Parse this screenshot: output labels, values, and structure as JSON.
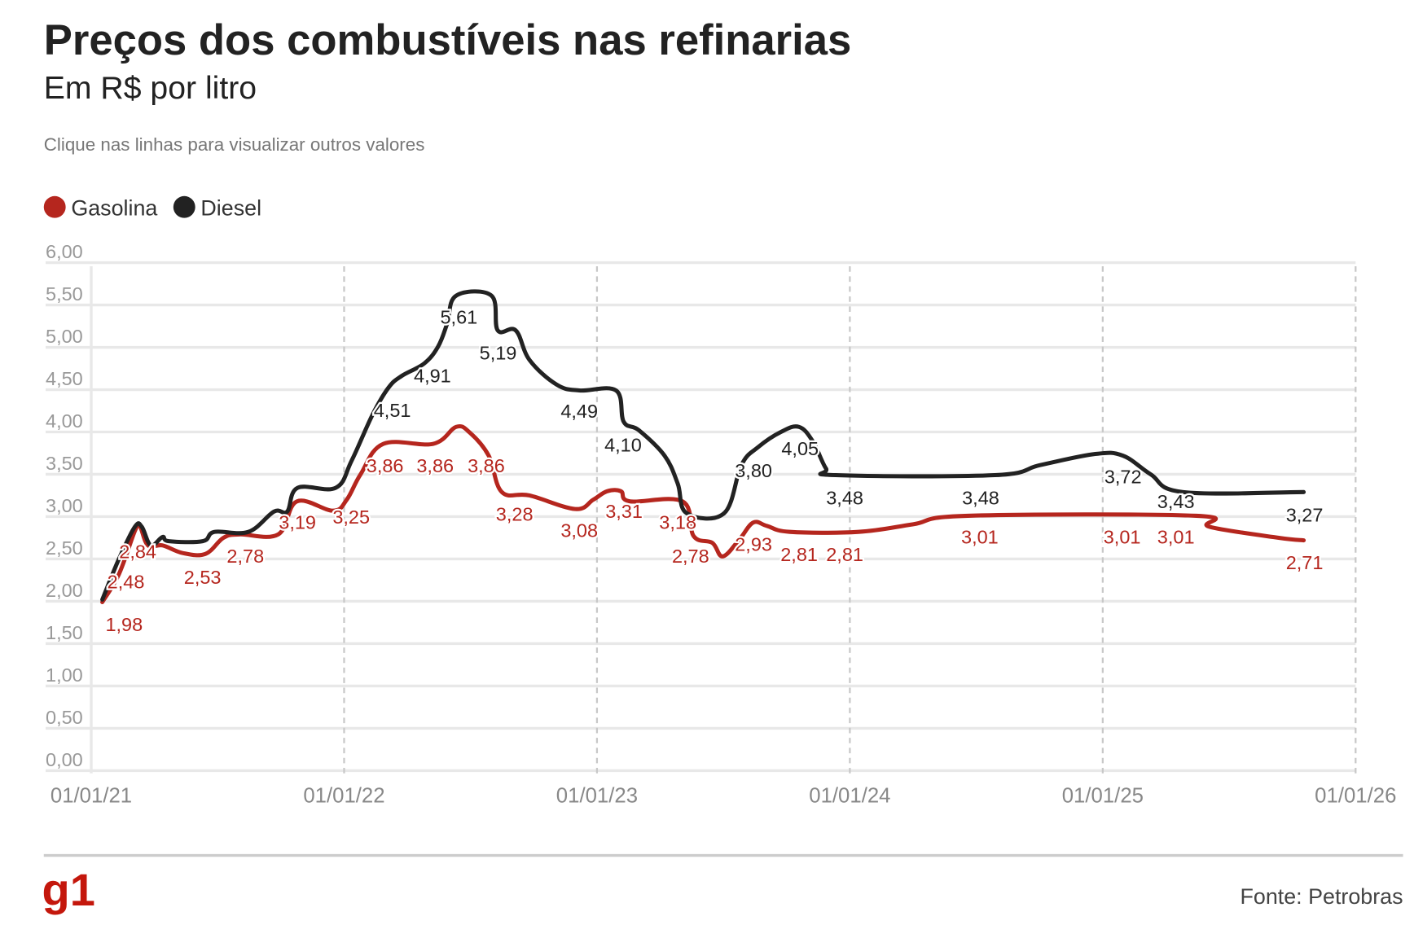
{
  "header": {
    "title": "Preços dos combustíveis nas refinarias",
    "subtitle": "Em R$ por litro",
    "note": "Clique nas linhas para visualizar outros valores"
  },
  "footer": {
    "logo": "g1",
    "source": "Fonte: Petrobras"
  },
  "chart_data": {
    "type": "line",
    "title": "Preços dos combustíveis nas refinarias",
    "subtitle": "Em R$ por litro",
    "ylim": [
      0,
      6
    ],
    "xlim": [
      "2021-01-01",
      "2026-01-01"
    ],
    "yticks": [
      "0,00",
      "0,50",
      "1,00",
      "1,50",
      "2,00",
      "2,50",
      "3,00",
      "3,50",
      "4,00",
      "4,50",
      "5,00",
      "5,50",
      "6,00"
    ],
    "xticks": [
      "01/01/21",
      "01/01/22",
      "01/01/23",
      "01/01/24",
      "01/01/25",
      "01/01/26"
    ],
    "grid": true,
    "legend_placement": "top-left",
    "series": [
      {
        "name": "Gasolina",
        "color": "#b5261e",
        "x": [
          "2021-01-17",
          "2021-02-10",
          "2021-03-05",
          "2021-03-12",
          "2021-03-24",
          "2021-04-14",
          "2021-05-13",
          "2021-06-15",
          "2021-07-11",
          "2021-08-03",
          "2021-09-28",
          "2021-10-25",
          "2021-12-16",
          "2022-01-05",
          "2022-01-25",
          "2022-02-27",
          "2022-05-10",
          "2022-06-12",
          "2022-07-02",
          "2022-07-29",
          "2022-08-17",
          "2022-09-26",
          "2022-12-01",
          "2022-12-27",
          "2023-01-16",
          "2023-02-05",
          "2023-02-18",
          "2023-05-05",
          "2023-05-21",
          "2023-06-17",
          "2023-07-02",
          "2023-07-26",
          "2023-08-15",
          "2023-09-04",
          "2023-10-07",
          "2024-01-14",
          "2024-04-02",
          "2024-06-20",
          "2025-05-16",
          "2025-06-04",
          "2025-09-12",
          "2025-10-18"
        ],
        "values": [
          1.99,
          2.32,
          2.83,
          2.89,
          2.66,
          2.66,
          2.57,
          2.56,
          2.75,
          2.79,
          2.79,
          3.18,
          3.07,
          3.2,
          3.5,
          3.86,
          3.86,
          4.06,
          3.99,
          3.72,
          3.29,
          3.25,
          3.09,
          3.2,
          3.3,
          3.3,
          3.18,
          3.18,
          2.77,
          2.69,
          2.53,
          2.73,
          2.93,
          2.89,
          2.82,
          2.82,
          2.91,
          3.01,
          3.01,
          2.88,
          2.75,
          2.72
        ],
        "labels": [
          "1,98",
          "2,48",
          "2,84",
          "2,53",
          "2,78",
          "3,19",
          "3,25",
          "3,86",
          "3,86",
          "3,86",
          "3,28",
          "3,08",
          "3,31",
          "3,18",
          "2,78",
          "2,93",
          "2,81",
          "2,81",
          "3,01",
          "3,01",
          "3,01",
          "2,71"
        ]
      },
      {
        "name": "Diesel",
        "color": "#222222",
        "x": [
          "2021-01-17",
          "2021-02-10",
          "2021-03-05",
          "2021-03-15",
          "2021-03-28",
          "2021-04-14",
          "2021-04-23",
          "2021-06-11",
          "2021-06-28",
          "2021-08-16",
          "2021-09-22",
          "2021-10-11",
          "2021-10-26",
          "2021-12-20",
          "2022-01-12",
          "2022-02-11",
          "2022-03-06",
          "2022-03-25",
          "2022-04-27",
          "2022-05-17",
          "2022-05-30",
          "2022-06-12",
          "2022-08-02",
          "2022-08-11",
          "2022-09-06",
          "2022-09-26",
          "2022-11-04",
          "2022-12-07",
          "2023-01-29",
          "2023-02-09",
          "2023-03-03",
          "2023-04-09",
          "2023-04-28",
          "2023-05-11",
          "2023-07-04",
          "2023-07-29",
          "2023-08-22",
          "2023-09-24",
          "2023-10-20",
          "2023-11-09",
          "2023-11-28",
          "2023-12-12",
          "2024-07-29",
          "2024-10-03",
          "2024-12-21",
          "2025-01-30",
          "2025-03-11",
          "2025-04-27",
          "2025-10-18"
        ],
        "values": [
          2.02,
          2.5,
          2.88,
          2.88,
          2.66,
          2.76,
          2.71,
          2.71,
          2.82,
          2.82,
          3.06,
          3.06,
          3.34,
          3.34,
          3.66,
          4.2,
          4.52,
          4.66,
          4.81,
          5.01,
          5.28,
          5.61,
          5.61,
          5.2,
          5.2,
          4.85,
          4.56,
          4.49,
          4.49,
          4.12,
          4.02,
          3.72,
          3.39,
          3.04,
          3.04,
          3.61,
          3.82,
          4.0,
          4.06,
          3.89,
          3.57,
          3.49,
          3.49,
          3.61,
          3.74,
          3.72,
          3.5,
          3.29,
          3.29
        ],
        "labels": [
          "4,51",
          "4,91",
          "5,61",
          "5,19",
          "4,49",
          "4,10",
          "3,80",
          "4,05",
          "3,48",
          "3,48",
          "3,72",
          "3,43",
          "3,27"
        ]
      }
    ]
  }
}
